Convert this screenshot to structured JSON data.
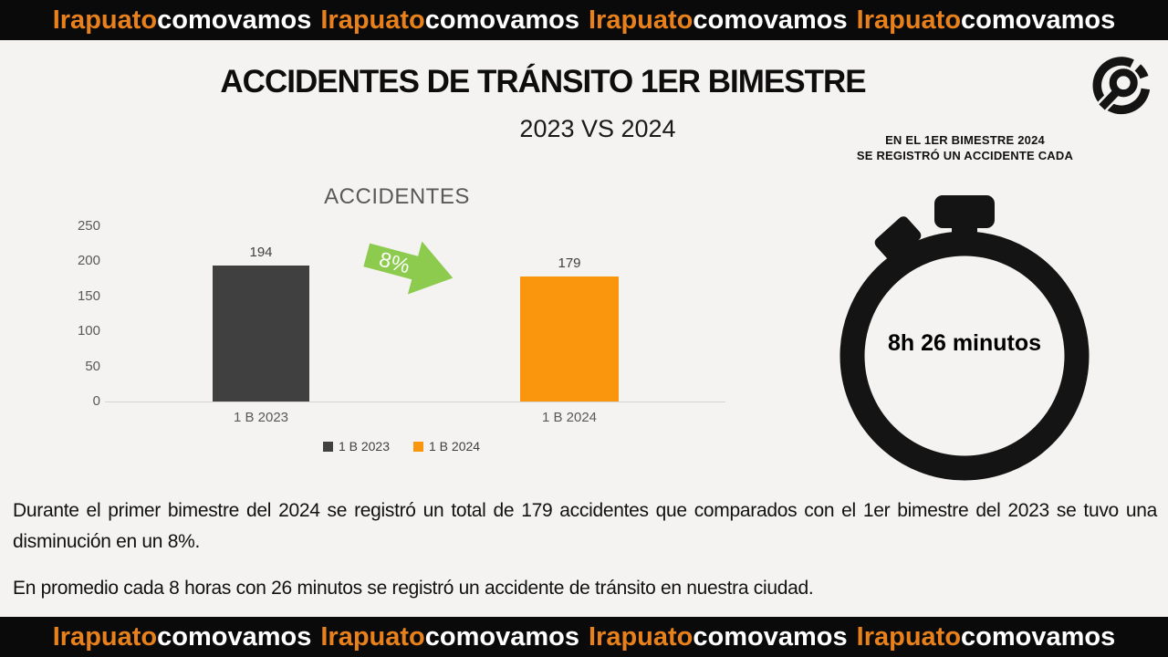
{
  "colors": {
    "background": "#F4F3F1",
    "banner_bg": "#0A0A0A",
    "banner_orange": "#E8811C",
    "banner_white": "#FFFFFF",
    "bar_dark": "#404040",
    "bar_orange": "#F9960D",
    "arrow_green": "#8DCB4F",
    "chart_text": "#595959",
    "axis_line": "#D6D4D1",
    "icon_black": "#141414"
  },
  "banner": {
    "brand_orange": "Irapuato",
    "brand_white": "comovamos",
    "repetitions": 4
  },
  "header": {
    "title": "ACCIDENTES DE TRÁNSITO 1ER BIMESTRE",
    "subtitle": "2023 VS 2024"
  },
  "stopwatch_panel": {
    "caption_line1": "EN EL 1ER BIMESTRE 2024",
    "caption_line2": "SE REGISTRÓ UN ACCIDENTE CADA",
    "time_label": "8h 26 minutos"
  },
  "chart_data": {
    "type": "bar",
    "title": "ACCIDENTES",
    "categories": [
      "1 B 2023",
      "1 B 2024"
    ],
    "values": [
      194,
      179
    ],
    "series": [
      {
        "name": "1 B 2023",
        "value": 194,
        "color": "#404040"
      },
      {
        "name": "1 B 2024",
        "value": 179,
        "color": "#F9960D"
      }
    ],
    "data_labels": [
      "194",
      "179"
    ],
    "ylim": [
      0,
      250
    ],
    "yticks": [
      "250",
      "200",
      "150",
      "100",
      "50",
      "0"
    ],
    "grid": false,
    "legend_position": "bottom",
    "annotation": {
      "label": "8%",
      "shape": "right-arrow",
      "color": "#8DCB4F"
    }
  },
  "body": {
    "paragraph1": "Durante el primer bimestre del 2024 se registró un total de 179 accidentes que comparados con el 1er bimestre del 2023 se tuvo una disminución en un 8%.",
    "paragraph2": "En promedio cada 8 horas con 26 minutos se registró un accidente de tránsito en nuestra ciudad."
  }
}
